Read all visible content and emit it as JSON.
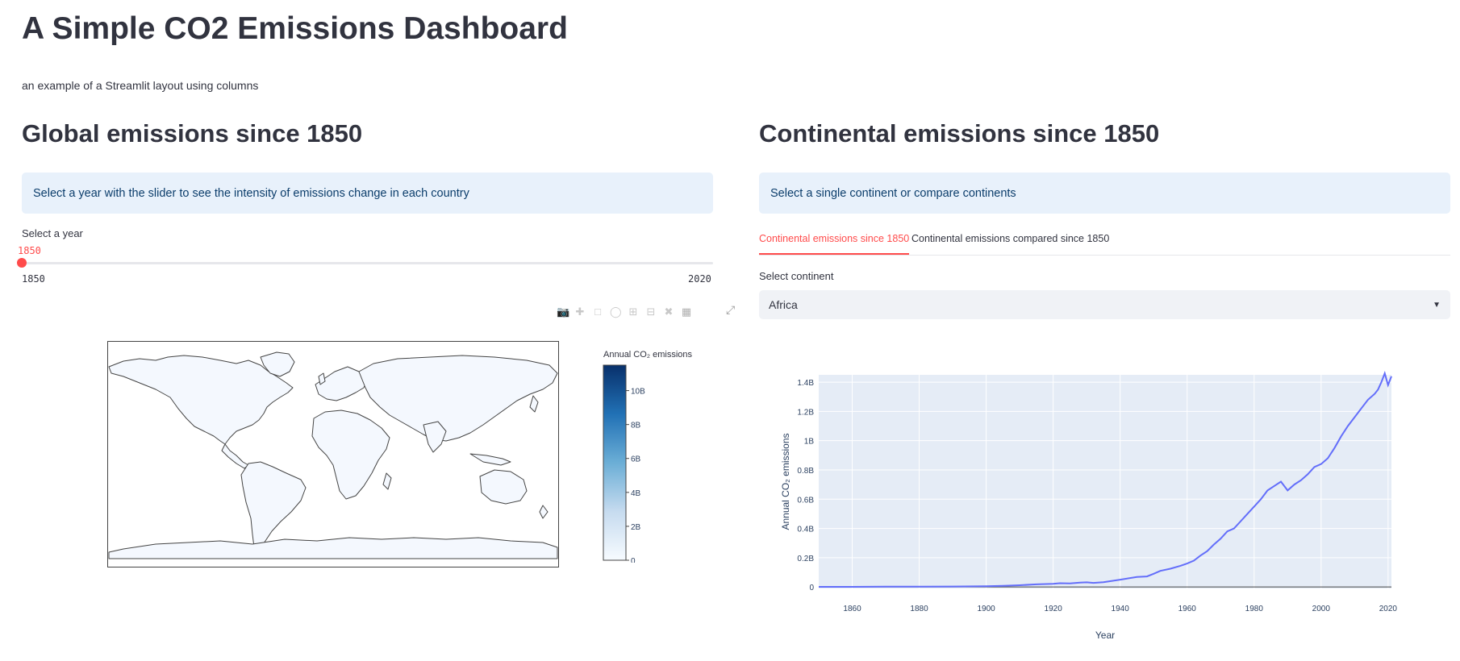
{
  "page": {
    "title": "A Simple CO2 Emissions Dashboard",
    "subtitle": "an example of a Streamlit layout using columns"
  },
  "left": {
    "title": "Global emissions since 1850",
    "info": "Select a year with the slider to see the intensity of emissions change in each country",
    "slider": {
      "label": "Select a year",
      "value": "1850",
      "min": "1850",
      "max": "2020",
      "fraction": 0
    },
    "map": {
      "colorbar_title": "Annual CO₂ emissions",
      "colorbar_ticks": [
        "0",
        "2B",
        "4B",
        "6B",
        "8B",
        "10B"
      ],
      "colors": {
        "low": "#f7fbff",
        "high": "#08306b",
        "land": "#f4f8fe",
        "border": "#444444"
      }
    },
    "modebar_icons": [
      "camera-icon",
      "pan-icon",
      "box-select-icon",
      "lasso-icon",
      "zoom-in-icon",
      "zoom-out-icon",
      "reset-axes-icon",
      "plotly-logo-icon"
    ]
  },
  "right": {
    "title": "Continental emissions since 1850",
    "info": "Select a single continent or compare continents",
    "tabs": [
      {
        "label": "Continental emissions since 1850",
        "active": true
      },
      {
        "label": "Continental emissions compared since 1850",
        "active": false
      }
    ],
    "select": {
      "label": "Select continent",
      "value": "Africa"
    }
  },
  "chart_data": {
    "type": "line",
    "title": "",
    "xlabel": "Year",
    "ylabel": "Annual CO₂ emissions",
    "xlim": [
      1850,
      2021
    ],
    "ylim": [
      -0.01,
      1.45
    ],
    "x_ticks": [
      1860,
      1880,
      1900,
      1920,
      1940,
      1960,
      1980,
      2000,
      2020
    ],
    "y_ticks": [
      0,
      0.2,
      0.4,
      0.6,
      0.8,
      1,
      1.2,
      1.4
    ],
    "y_tick_labels": [
      "0",
      "0.2B",
      "0.4B",
      "0.6B",
      "0.8B",
      "1B",
      "1.2B",
      "1.4B"
    ],
    "grid": true,
    "line_color": "#636efa",
    "series": [
      {
        "x": [
          1850,
          1860,
          1870,
          1880,
          1890,
          1900,
          1905,
          1910,
          1915,
          1920,
          1922,
          1925,
          1928,
          1930,
          1932,
          1935,
          1940,
          1945,
          1948,
          1950,
          1952,
          1955,
          1958,
          1960,
          1962,
          1964,
          1966,
          1968,
          1970,
          1972,
          1974,
          1976,
          1978,
          1980,
          1982,
          1984,
          1986,
          1988,
          1990,
          1992,
          1994,
          1996,
          1998,
          2000,
          2002,
          2004,
          2006,
          2008,
          2010,
          2012,
          2014,
          2016,
          2017,
          2018,
          2019,
          2020,
          2021
        ],
        "y": [
          0.001,
          0.001,
          0.002,
          0.002,
          0.003,
          0.005,
          0.008,
          0.012,
          0.018,
          0.022,
          0.026,
          0.024,
          0.03,
          0.032,
          0.028,
          0.033,
          0.05,
          0.068,
          0.072,
          0.09,
          0.11,
          0.125,
          0.145,
          0.16,
          0.18,
          0.215,
          0.245,
          0.29,
          0.33,
          0.38,
          0.4,
          0.45,
          0.5,
          0.55,
          0.6,
          0.66,
          0.69,
          0.72,
          0.66,
          0.7,
          0.73,
          0.77,
          0.82,
          0.84,
          0.88,
          0.95,
          1.03,
          1.1,
          1.16,
          1.22,
          1.28,
          1.32,
          1.35,
          1.4,
          1.46,
          1.38,
          1.44
        ]
      }
    ]
  }
}
